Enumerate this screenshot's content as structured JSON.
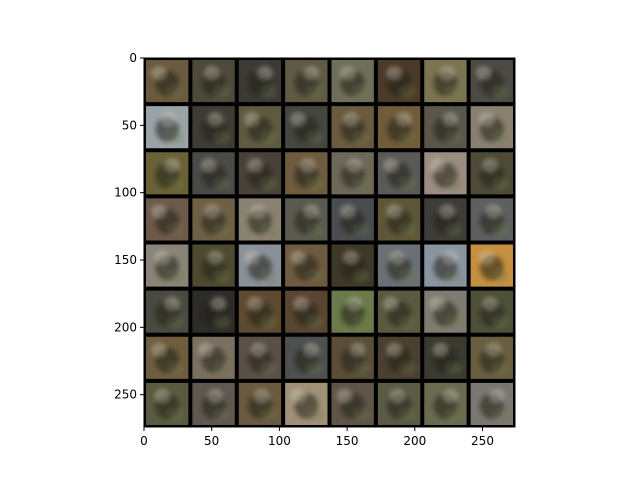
{
  "figure": {
    "kind": "image-grid",
    "description_visible": false,
    "grid": {
      "rows": 8,
      "cols": 8
    },
    "x_axis": {
      "ticks": [
        0,
        50,
        100,
        150,
        200,
        250
      ],
      "range": [
        0,
        274
      ]
    },
    "y_axis": {
      "ticks": [
        0,
        50,
        100,
        150,
        200,
        250
      ],
      "range": [
        0,
        274
      ],
      "inverted": true
    },
    "tile_palette": [
      [
        "#6b5a3e",
        "#4e4a3b",
        "#3b3a35",
        "#5e5a45",
        "#6e6e5a",
        "#4a3a28",
        "#7a7450",
        "#4b4a44"
      ],
      [
        "#9aa4a8",
        "#3e3c35",
        "#5e5a40",
        "#444640",
        "#6a5a40",
        "#705c3a",
        "#5a564a",
        "#8a8070"
      ],
      [
        "#6a6236",
        "#4a4a48",
        "#4a4238",
        "#6e5c40",
        "#6e6858",
        "#5a5a58",
        "#9a8c80",
        "#4e4a38"
      ],
      [
        "#6e5a4a",
        "#6e6045",
        "#8a8270",
        "#5a5a50",
        "#4a4c50",
        "#5e563a",
        "#3e3c38",
        "#5e6060"
      ],
      [
        "#8a8478",
        "#4e4a30",
        "#8a9098",
        "#6e5a40",
        "#3e3828",
        "#6a7074",
        "#8a94a0",
        "#c49040"
      ],
      [
        "#4a4a40",
        "#2e2c28",
        "#5e4a30",
        "#5a4630",
        "#6a7a4a",
        "#5a5a40",
        "#7e7c70",
        "#4e5038"
      ],
      [
        "#6e5e3e",
        "#7a7060",
        "#5a5048",
        "#4e5050",
        "#5a4e38",
        "#4a4030",
        "#3a3a30",
        "#6a5e40"
      ],
      [
        "#5a5a40",
        "#5e5850",
        "#6a5a40",
        "#a09078",
        "#5e5548",
        "#5a5a45",
        "#6a6a50",
        "#7a7670"
      ]
    ]
  }
}
